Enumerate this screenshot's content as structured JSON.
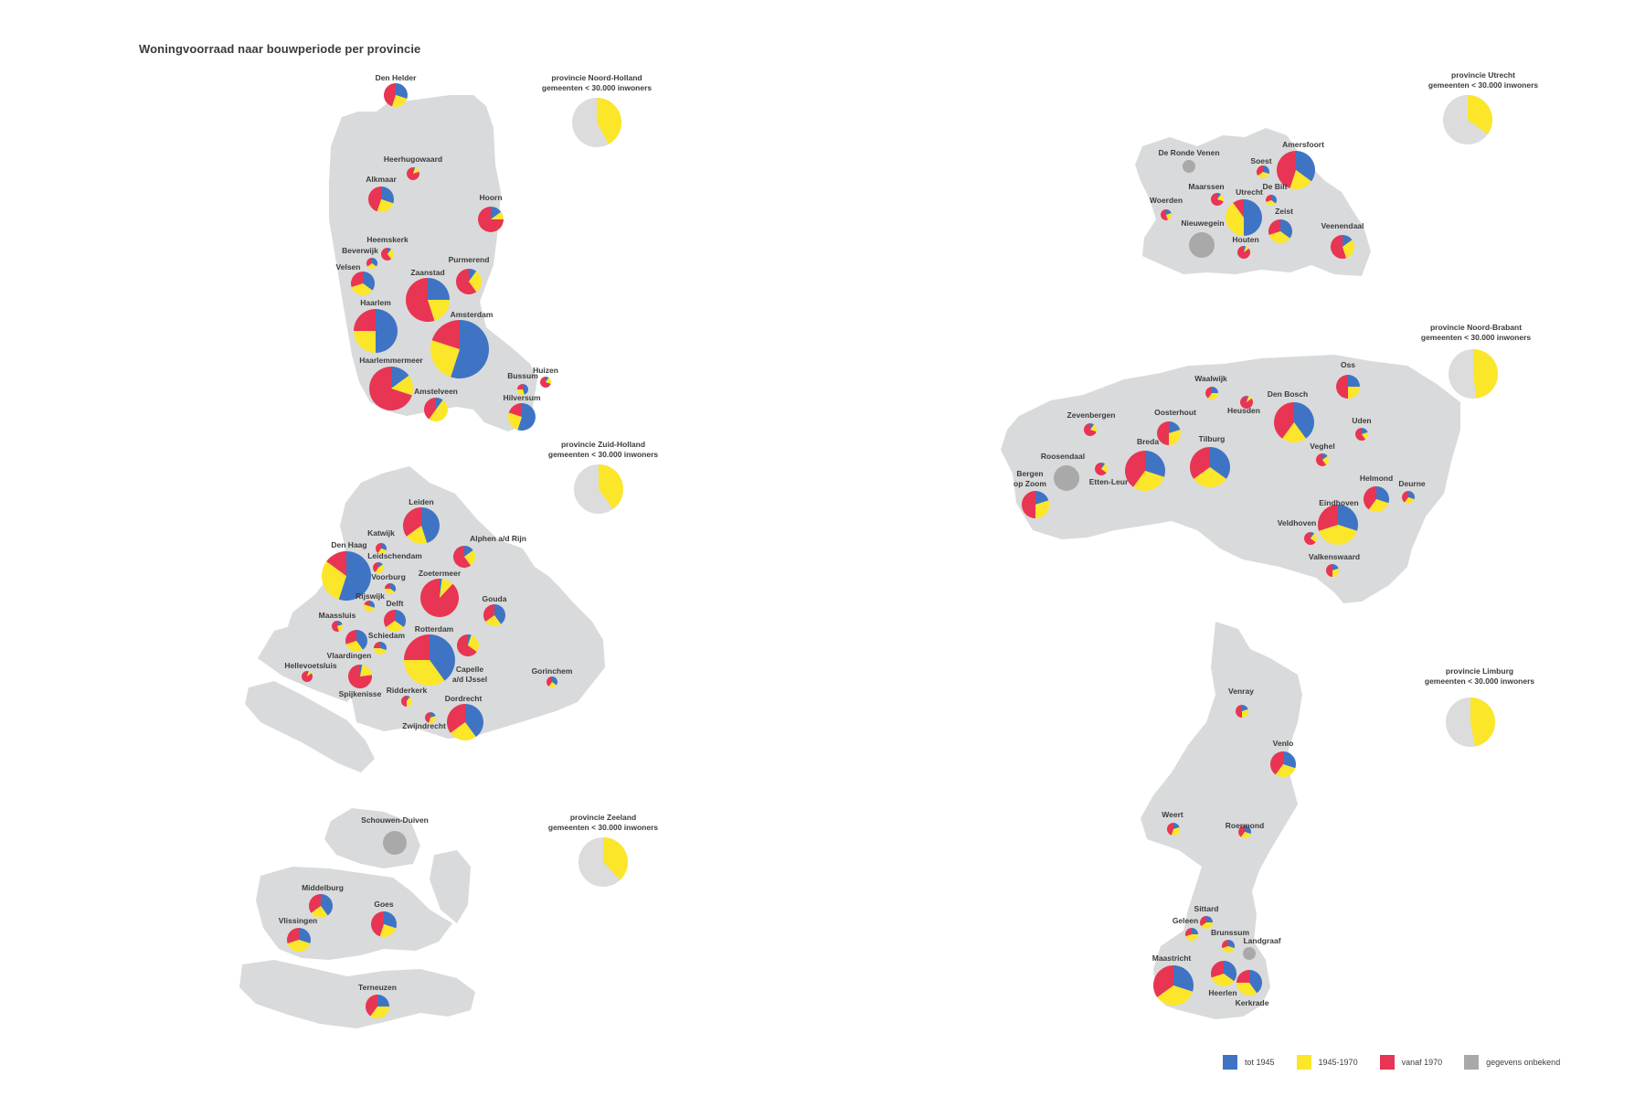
{
  "title": "Woningvoorraad naar bouwperiode per provincie",
  "colors": {
    "tot1945": "#3f74c4",
    "p1945_1970": "#fbe62a",
    "vanaf1970": "#e83553",
    "onbekend": "#a9a9a9",
    "land": "#d9dadb",
    "reference_bg": "#dcdcdc"
  },
  "legend": [
    {
      "key": "tot1945",
      "label": "tot 1945"
    },
    {
      "key": "p1945_1970",
      "label": "1945-1970"
    },
    {
      "key": "vanaf1970",
      "label": "vanaf 1970"
    },
    {
      "key": "onbekend",
      "label": "gegevens onbekend"
    }
  ],
  "provinces": [
    {
      "name": "provincie Noord-Holland",
      "note": "gemeenten < 30.000 inwoners",
      "share_1945_1970": 0.42
    },
    {
      "name": "provincie Zuid-Holland",
      "note": "gemeenten < 30.000 inwoners",
      "share_1945_1970": 0.4
    },
    {
      "name": "provincie Zeeland",
      "note": "gemeenten < 30.000 inwoners",
      "share_1945_1970": 0.38
    },
    {
      "name": "provincie Utrecht",
      "note": "gemeenten < 30.000 inwoners",
      "share_1945_1970": 0.35
    },
    {
      "name": "provincie Noord-Brabant",
      "note": "gemeenten < 30.000 inwoners",
      "share_1945_1970": 0.48
    },
    {
      "name": "provincie Limburg",
      "note": "gemeenten < 30.000 inwoners",
      "share_1945_1970": 0.47
    }
  ],
  "municipalities": [
    {
      "name": "Den Helder",
      "shares": [
        0.3,
        0.25,
        0.45
      ]
    },
    {
      "name": "Heerhugowaard",
      "shares": [
        0.05,
        0.15,
        0.8
      ]
    },
    {
      "name": "Alkmaar",
      "shares": [
        0.3,
        0.25,
        0.45
      ]
    },
    {
      "name": "Hoorn",
      "shares": [
        0.15,
        0.1,
        0.75
      ]
    },
    {
      "name": "Heemskerk",
      "shares": [
        0.1,
        0.3,
        0.6
      ]
    },
    {
      "name": "Beverwijk",
      "shares": [
        0.35,
        0.3,
        0.35
      ]
    },
    {
      "name": "Velsen",
      "shares": [
        0.35,
        0.35,
        0.3
      ]
    },
    {
      "name": "Purmerend",
      "shares": [
        0.1,
        0.3,
        0.6
      ]
    },
    {
      "name": "Zaanstad",
      "shares": [
        0.25,
        0.2,
        0.55
      ]
    },
    {
      "name": "Haarlem",
      "shares": [
        0.5,
        0.25,
        0.25
      ]
    },
    {
      "name": "Amsterdam",
      "shares": [
        0.55,
        0.25,
        0.2
      ]
    },
    {
      "name": "Haarlemmermeer",
      "shares": [
        0.15,
        0.15,
        0.7
      ]
    },
    {
      "name": "Amstelveen",
      "shares": [
        0.1,
        0.5,
        0.4
      ]
    },
    {
      "name": "Bussum",
      "shares": [
        0.45,
        0.3,
        0.25
      ]
    },
    {
      "name": "Huizen",
      "shares": [
        0.1,
        0.2,
        0.7
      ]
    },
    {
      "name": "Hilversum",
      "shares": [
        0.55,
        0.25,
        0.2
      ]
    },
    {
      "name": "Leiden",
      "shares": [
        0.45,
        0.2,
        0.35
      ]
    },
    {
      "name": "Katwijk",
      "shares": [
        0.3,
        0.3,
        0.4
      ]
    },
    {
      "name": "Alphen a/d Rijn",
      "shares": [
        0.15,
        0.25,
        0.6
      ]
    },
    {
      "name": "Den Haag",
      "shares": [
        0.55,
        0.3,
        0.15
      ]
    },
    {
      "name": "Leidschendam",
      "shares": [
        0.15,
        0.45,
        0.4
      ]
    },
    {
      "name": "Voorburg",
      "shares": [
        0.35,
        0.4,
        0.25
      ]
    },
    {
      "name": "Zoetermeer",
      "shares": [
        0.02,
        0.1,
        0.88
      ]
    },
    {
      "name": "Rijswijk",
      "shares": [
        0.3,
        0.5,
        0.2
      ]
    },
    {
      "name": "Delft",
      "shares": [
        0.35,
        0.3,
        0.35
      ]
    },
    {
      "name": "Gouda",
      "shares": [
        0.4,
        0.25,
        0.35
      ]
    },
    {
      "name": "Maassluis",
      "shares": [
        0.2,
        0.25,
        0.55
      ]
    },
    {
      "name": "Schiedam",
      "shares": [
        0.4,
        0.3,
        0.3
      ]
    },
    {
      "name": "Rotterdam",
      "shares": [
        0.4,
        0.35,
        0.25
      ]
    },
    {
      "name": "Capelle a/d IJssel",
      "shares": [
        0.05,
        0.3,
        0.65
      ]
    },
    {
      "name": "Vlaardingen",
      "shares": [
        0.3,
        0.45,
        0.25
      ]
    },
    {
      "name": "Hellevoetsluis",
      "shares": [
        0.05,
        0.1,
        0.85
      ]
    },
    {
      "name": "Spijkenisse",
      "shares": [
        0.03,
        0.2,
        0.77
      ]
    },
    {
      "name": "Ridderkerk",
      "shares": [
        0.1,
        0.4,
        0.5
      ]
    },
    {
      "name": "Gorinchem",
      "shares": [
        0.35,
        0.25,
        0.4
      ]
    },
    {
      "name": "Dordrecht",
      "shares": [
        0.4,
        0.25,
        0.35
      ]
    },
    {
      "name": "Zwijndrecht",
      "shares": [
        0.2,
        0.35,
        0.45
      ]
    },
    {
      "name": "Schouwen-Duiven",
      "shares": null
    },
    {
      "name": "Middelburg",
      "shares": [
        0.4,
        0.25,
        0.35
      ]
    },
    {
      "name": "Goes",
      "shares": [
        0.3,
        0.25,
        0.45
      ]
    },
    {
      "name": "Vlissingen",
      "shares": [
        0.3,
        0.4,
        0.3
      ]
    },
    {
      "name": "Terneuzen",
      "shares": [
        0.25,
        0.35,
        0.4
      ]
    },
    {
      "name": "De Ronde Venen",
      "shares": null
    },
    {
      "name": "Soest",
      "shares": [
        0.3,
        0.35,
        0.35
      ]
    },
    {
      "name": "Amersfoort",
      "shares": [
        0.35,
        0.2,
        0.45
      ]
    },
    {
      "name": "Maarssen",
      "shares": [
        0.1,
        0.2,
        0.7
      ]
    },
    {
      "name": "Utrecht",
      "shares": [
        0.5,
        0.4,
        0.1
      ]
    },
    {
      "name": "De Bilt",
      "shares": [
        0.35,
        0.35,
        0.3
      ]
    },
    {
      "name": "Woerden",
      "shares": [
        0.2,
        0.25,
        0.55
      ]
    },
    {
      "name": "Nieuwegein",
      "shares": null
    },
    {
      "name": "Zeist",
      "shares": [
        0.35,
        0.35,
        0.3
      ]
    },
    {
      "name": "Houten",
      "shares": [
        0.05,
        0.1,
        0.85
      ]
    },
    {
      "name": "Veenendaal",
      "shares": [
        0.15,
        0.3,
        0.55
      ]
    },
    {
      "name": "Oss",
      "shares": [
        0.25,
        0.25,
        0.5
      ]
    },
    {
      "name": "Waalwijk",
      "shares": [
        0.25,
        0.35,
        0.4
      ]
    },
    {
      "name": "Heusden",
      "shares": [
        0.05,
        0.1,
        0.85
      ]
    },
    {
      "name": "Den Bosch",
      "shares": [
        0.4,
        0.2,
        0.4
      ]
    },
    {
      "name": "Zevenbergen",
      "shares": [
        0.1,
        0.2,
        0.7
      ]
    },
    {
      "name": "Oosterhout",
      "shares": [
        0.2,
        0.3,
        0.5
      ]
    },
    {
      "name": "Uden",
      "shares": [
        0.2,
        0.2,
        0.6
      ]
    },
    {
      "name": "Breda",
      "shares": [
        0.3,
        0.3,
        0.4
      ]
    },
    {
      "name": "Tilburg",
      "shares": [
        0.35,
        0.3,
        0.35
      ]
    },
    {
      "name": "Veghel",
      "shares": [
        0.15,
        0.25,
        0.6
      ]
    },
    {
      "name": "Roosendaal",
      "shares": null
    },
    {
      "name": "Bergen op Zoom",
      "shares": [
        0.2,
        0.3,
        0.5
      ]
    },
    {
      "name": "Etten-Leur",
      "shares": [
        0.1,
        0.25,
        0.65
      ]
    },
    {
      "name": "Helmond",
      "shares": [
        0.3,
        0.3,
        0.4
      ]
    },
    {
      "name": "Deurne",
      "shares": [
        0.3,
        0.3,
        0.4
      ]
    },
    {
      "name": "Eindhoven",
      "shares": [
        0.3,
        0.4,
        0.3
      ]
    },
    {
      "name": "Veldhoven",
      "shares": [
        0.1,
        0.25,
        0.65
      ]
    },
    {
      "name": "Valkenswaard",
      "shares": [
        0.2,
        0.3,
        0.5
      ]
    },
    {
      "name": "Venray",
      "shares": [
        0.2,
        0.3,
        0.5
      ]
    },
    {
      "name": "Venlo",
      "shares": [
        0.3,
        0.3,
        0.4
      ]
    },
    {
      "name": "Weert",
      "shares": [
        0.2,
        0.35,
        0.45
      ]
    },
    {
      "name": "Roermond",
      "shares": [
        0.3,
        0.3,
        0.4
      ]
    },
    {
      "name": "Sittard",
      "shares": [
        0.25,
        0.4,
        0.35
      ]
    },
    {
      "name": "Geleen",
      "shares": [
        0.25,
        0.45,
        0.3
      ]
    },
    {
      "name": "Brunssum",
      "shares": [
        0.3,
        0.4,
        0.3
      ]
    },
    {
      "name": "Landgraaf",
      "shares": null
    },
    {
      "name": "Maastricht",
      "shares": [
        0.3,
        0.35,
        0.35
      ]
    },
    {
      "name": "Heerlen",
      "shares": [
        0.35,
        0.35,
        0.3
      ]
    },
    {
      "name": "Kerkrade",
      "shares": [
        0.4,
        0.35,
        0.25
      ]
    }
  ]
}
